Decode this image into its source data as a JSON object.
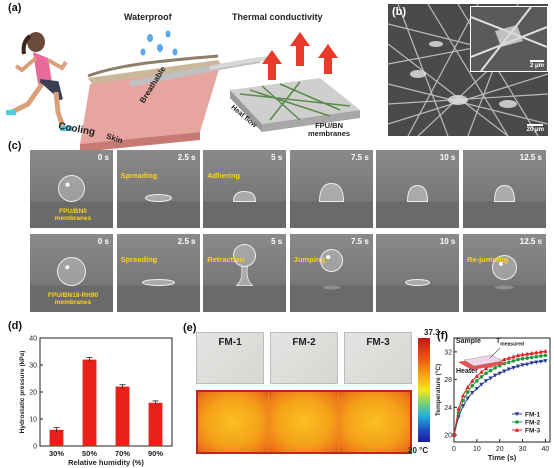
{
  "panel_a": {
    "label": "(a)",
    "title_waterproof": "Waterproof",
    "title_thermal": "Thermal conductivity",
    "label_cooling": "Cooling",
    "label_skin": "Skin",
    "label_breathable": "Breathable",
    "label_heatflow": "Heat flow",
    "label_membrane_1": "FPU/BN",
    "label_membrane_2": "membranes"
  },
  "panel_b": {
    "label": "(b)",
    "scale_inset": "2 μm",
    "scale_main": "20 μm"
  },
  "panel_c": {
    "label": "(c)",
    "rows": [
      {
        "material_1": "FPU/BN0",
        "material_2": "membranes",
        "frames": [
          {
            "time": "0 s",
            "caption": ""
          },
          {
            "time": "2.5 s",
            "caption": "Spreading"
          },
          {
            "time": "5 s",
            "caption": "Adhering"
          },
          {
            "time": "7.5 s",
            "caption": ""
          },
          {
            "time": "10 s",
            "caption": ""
          },
          {
            "time": "12.5 s",
            "caption": ""
          }
        ]
      },
      {
        "material_1": "FPU/BN18-RH90",
        "material_2": "membranes",
        "frames": [
          {
            "time": "0 s",
            "caption": ""
          },
          {
            "time": "2.5 s",
            "caption": "Spreading"
          },
          {
            "time": "5 s",
            "caption": "Retraction"
          },
          {
            "time": "7.5 s",
            "caption": "Jumping"
          },
          {
            "time": "10 s",
            "caption": ""
          },
          {
            "time": "12.5 s",
            "caption": "Re-jumping"
          }
        ]
      }
    ]
  },
  "panel_d": {
    "label": "(d)"
  },
  "panel_e": {
    "label": "(e)",
    "samples": [
      "FM-1",
      "FM-2",
      "FM-3"
    ],
    "colorbar_max": "37.3",
    "colorbar_min": "20 °C"
  },
  "panel_f": {
    "label": "(f)",
    "inset_sample": "Sample",
    "inset_tmeasured": "T",
    "inset_tmeasured_sub": "measured",
    "inset_heater": "Heater"
  },
  "chart_data": [
    {
      "type": "bar",
      "categories": [
        "30%",
        "50%",
        "70%",
        "90%"
      ],
      "values": [
        6,
        32,
        22,
        16
      ],
      "errors": [
        0.8,
        0.8,
        0.7,
        0.7
      ],
      "xlabel": "Relative humidity (%)",
      "ylabel": "Hydrostatic pressure (kPa)",
      "ylim": [
        0,
        40
      ],
      "yticks": [
        0,
        10,
        20,
        30,
        40
      ],
      "color": "#e8211a"
    },
    {
      "type": "line",
      "xlabel": "Time (s)",
      "ylabel": "Temperature (°C)",
      "xlim": [
        0,
        42
      ],
      "ylim": [
        19,
        34
      ],
      "xticks": [
        0,
        10,
        20,
        30,
        40
      ],
      "yticks": [
        20,
        24,
        28,
        32
      ],
      "x": [
        0,
        2,
        4,
        6,
        8,
        10,
        12,
        14,
        16,
        18,
        20,
        22,
        24,
        26,
        28,
        30,
        32,
        34,
        36,
        38,
        40
      ],
      "legend_position": "bottom-right",
      "series": [
        {
          "name": "FM-1",
          "color": "#2a3f8f",
          "marker": "triangle-down",
          "values": [
            20.0,
            22.6,
            24.2,
            25.3,
            26.1,
            26.7,
            27.3,
            27.8,
            28.2,
            28.6,
            28.9,
            29.2,
            29.5,
            29.7,
            29.9,
            30.1,
            30.2,
            30.4,
            30.5,
            30.6,
            30.7
          ]
        },
        {
          "name": "FM-2",
          "color": "#1f9a3a",
          "marker": "circle",
          "values": [
            20.0,
            23.2,
            25.0,
            26.2,
            27.1,
            27.8,
            28.4,
            28.9,
            29.3,
            29.7,
            30.0,
            30.3,
            30.5,
            30.7,
            30.9,
            31.0,
            31.1,
            31.2,
            31.3,
            31.4,
            31.5
          ]
        },
        {
          "name": "FM-3",
          "color": "#e02020",
          "marker": "triangle-up",
          "values": [
            20.0,
            23.8,
            25.7,
            26.9,
            27.8,
            28.5,
            29.1,
            29.6,
            30.0,
            30.4,
            30.7,
            30.9,
            31.1,
            31.3,
            31.5,
            31.6,
            31.7,
            31.8,
            31.9,
            32.0,
            32.1
          ]
        }
      ]
    }
  ]
}
